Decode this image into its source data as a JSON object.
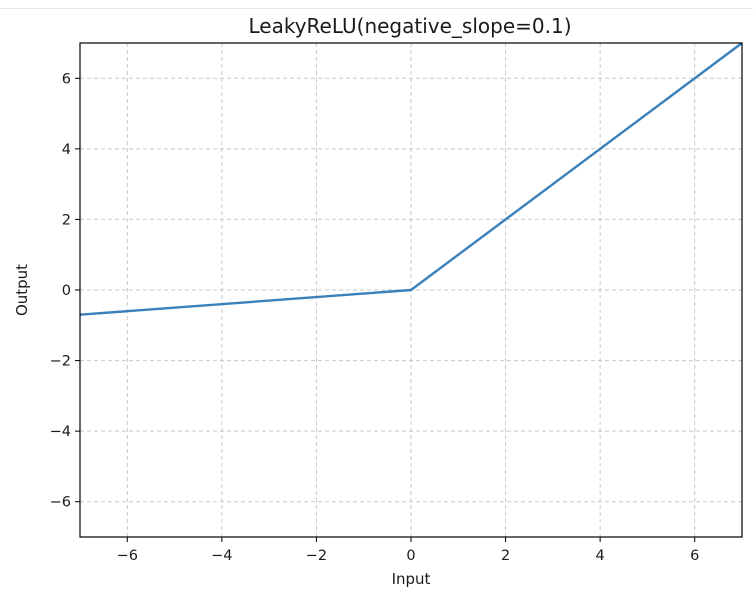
{
  "chart_data": {
    "type": "line",
    "title": "LeakyReLU(negative_slope=0.1)",
    "xlabel": "Input",
    "ylabel": "Output",
    "xlim": [
      -7,
      7
    ],
    "ylim": [
      -7,
      7
    ],
    "xticks": [
      -6,
      -4,
      -2,
      0,
      2,
      4,
      6
    ],
    "yticks": [
      -6,
      -4,
      -2,
      0,
      2,
      4,
      6
    ],
    "xtick_labels": [
      "−6",
      "−4",
      "−2",
      "0",
      "2",
      "4",
      "6"
    ],
    "ytick_labels": [
      "−6",
      "−4",
      "−2",
      "0",
      "2",
      "4",
      "6"
    ],
    "grid": true,
    "grid_style": "dashed",
    "series": [
      {
        "color": "#3a80bb",
        "x": [
          -7,
          0,
          7
        ],
        "y": [
          -0.7,
          0,
          7
        ]
      }
    ]
  }
}
